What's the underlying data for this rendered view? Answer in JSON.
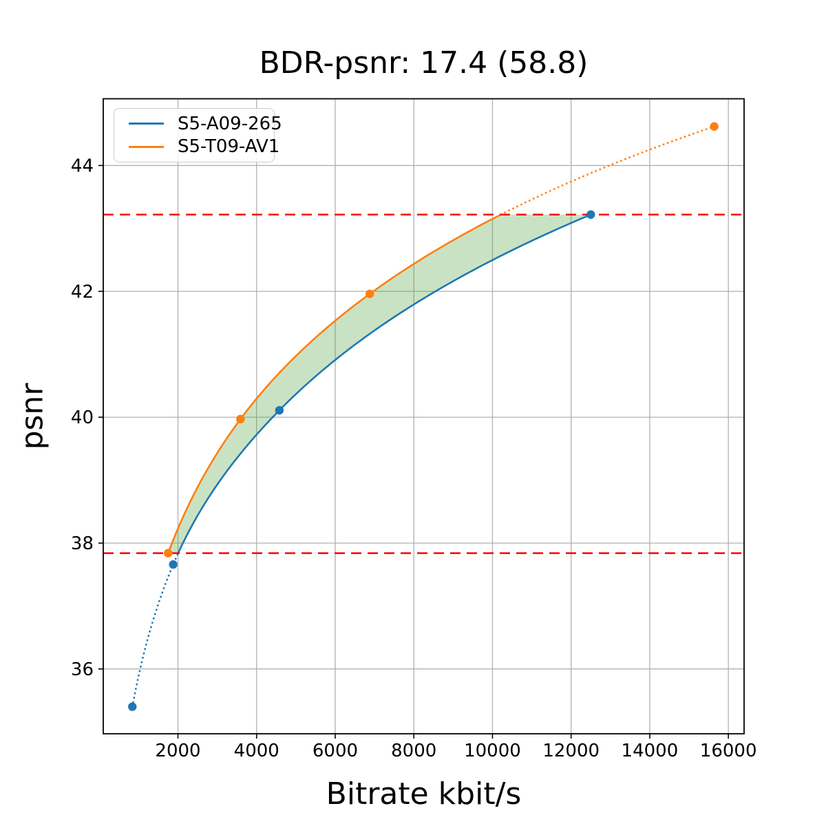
{
  "figure": {
    "title": "BDR-psnr: 17.4 (58.8)",
    "xlabel": "Bitrate kbit/s",
    "ylabel": "psnr"
  },
  "chart_data": {
    "type": "line",
    "title": "BDR-psnr: 17.4 (58.8)",
    "xlabel": "Bitrate kbit/s",
    "ylabel": "psnr",
    "xlim": [
      100,
      16400
    ],
    "ylim": [
      34.97,
      45.06
    ],
    "xticks": [
      2000,
      4000,
      6000,
      8000,
      10000,
      12000,
      14000,
      16000
    ],
    "yticks": [
      36,
      38,
      40,
      42,
      44
    ],
    "grid": true,
    "grid_color": "#b0b0b0",
    "spine_color": "#000000",
    "legend_position": "upper left",
    "series": [
      {
        "name": "S5-A09-265",
        "color": "#1f77b4",
        "points": [
          [
            840,
            35.4
          ],
          [
            1880,
            37.66
          ],
          [
            4580,
            40.11
          ],
          [
            12500,
            43.22
          ]
        ]
      },
      {
        "name": "S5-T09-AV1",
        "color": "#ff7f0e",
        "points": [
          [
            1750,
            37.84
          ],
          [
            3590,
            39.97
          ],
          [
            6880,
            41.96
          ],
          [
            15640,
            44.62
          ]
        ]
      }
    ],
    "overlap_psnr_range": [
      37.84,
      43.22
    ],
    "hlines": [
      {
        "y": 37.84,
        "color": "#ff0000",
        "linestyle": "dashed"
      },
      {
        "y": 43.22,
        "color": "#ff0000",
        "linestyle": "dashed"
      }
    ],
    "fill_between": {
      "color": "rgba(80,160,60,0.3)",
      "description": "shaded area between the two rate-distortion curves over the common psnr range"
    }
  },
  "legend": {
    "items": [
      {
        "label": "S5-A09-265",
        "color": "#1f77b4"
      },
      {
        "label": "S5-T09-AV1",
        "color": "#ff7f0e"
      }
    ]
  }
}
